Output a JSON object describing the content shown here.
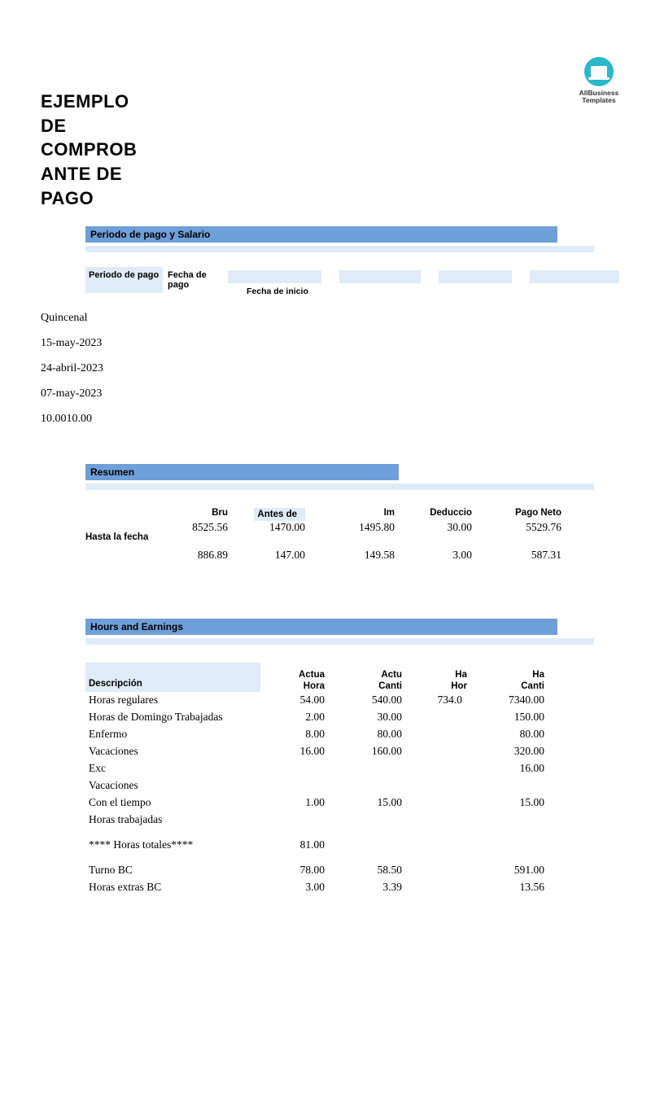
{
  "logo": {
    "line1": "AllBusiness",
    "line2": "Templates"
  },
  "title": "EJEMPLO DE COMPROB ANTE DE PAGO",
  "colors": {
    "header_bar": "#6f9fd8",
    "light_bar": "#dfebf7",
    "logo_bg": "#2bb7c9",
    "background": "#ffffff",
    "text": "#000000"
  },
  "section1": {
    "title": "Periodo de pago y Salario",
    "headers": {
      "col1": "Periodo de pago",
      "col2": "Fecha de pago",
      "sub": "Fecha de inicio"
    },
    "values": {
      "v1": "Quincenal",
      "v2": "15-may-2023",
      "v3": "24-abril-2023",
      "v4": "07-may-2023",
      "v5": "10.0010.00"
    }
  },
  "section2": {
    "title": "Resumen",
    "row_label": "Hasta la fecha",
    "headers": {
      "h1": "Bru",
      "h2": "Antes de",
      "h3": "Im",
      "h4": "Deduccio",
      "h5": "Pago Neto"
    },
    "row1": {
      "c1": "8525.56",
      "c2": "1470.00",
      "c3": "1495.80",
      "c4": "30.00",
      "c5": "5529.76"
    },
    "row2": {
      "c1": "886.89",
      "c2": "147.00",
      "c3": "149.58",
      "c4": "3.00",
      "c5": "587.31"
    }
  },
  "section3": {
    "title": "Hours and Earnings",
    "headers": {
      "desc": "Descripción",
      "h1a": "Actua",
      "h1b": "Hora",
      "h2a": "Actu",
      "h2b": "Canti",
      "h3a": "Ha",
      "h3b": "Hor",
      "h4a": "Ha",
      "h4b": "Canti"
    },
    "rows": [
      {
        "desc": "Horas regulares",
        "c1": "54.00",
        "c2": "540.00",
        "c3": "734.0",
        "c4": "7340.00"
      },
      {
        "desc": "Horas de Domingo Trabajadas",
        "c1": "2.00",
        "c2": "30.00",
        "c3": "",
        "c4": "150.00"
      },
      {
        "desc": "Enfermo",
        "c1": "8.00",
        "c2": "80.00",
        "c3": "",
        "c4": "80.00"
      },
      {
        "desc": "Vacaciones",
        "c1": "16.00",
        "c2": "160.00",
        "c3": "",
        "c4": "320.00"
      },
      {
        "desc": "Exc",
        "c1": "",
        "c2": "",
        "c3": "",
        "c4": "16.00"
      },
      {
        "desc": "Vacaciones",
        "c1": "",
        "c2": "",
        "c3": "",
        "c4": ""
      },
      {
        "desc": "Con el tiempo",
        "c1": "1.00",
        "c2": "15.00",
        "c3": "",
        "c4": "15.00"
      },
      {
        "desc": "Horas trabajadas",
        "c1": "",
        "c2": "",
        "c3": "",
        "c4": ""
      }
    ],
    "total": {
      "desc": "**** Horas totales****",
      "c1": "81.00",
      "c2": "",
      "c3": "",
      "c4": ""
    },
    "rows2": [
      {
        "desc": "Turno BC",
        "c1": "78.00",
        "c2": "58.50",
        "c3": "",
        "c4": "591.00"
      },
      {
        "desc": "Horas extras BC",
        "c1": "3.00",
        "c2": "3.39",
        "c3": "",
        "c4": "13.56"
      }
    ]
  }
}
